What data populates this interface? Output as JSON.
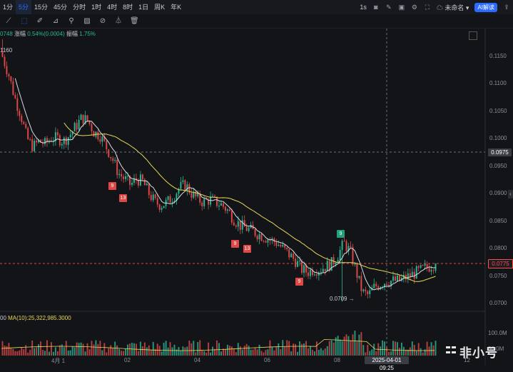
{
  "timeframes": [
    "1分",
    "5分",
    "15分",
    "45分",
    "分时",
    "1时",
    "4时",
    "8时",
    "1日",
    "周K",
    "年K"
  ],
  "active_timeframe": "5分",
  "top_right": {
    "interval": "1s",
    "layout_name": "未命名",
    "ai_label": "AI解读"
  },
  "info": {
    "price_fragment": "0748",
    "change_label": "涨幅",
    "change_value": "0.54%(0.0004)",
    "amp_label": "振幅",
    "amp_value": "1.75%"
  },
  "high_label": "1160",
  "volume_info": {
    "prefix": "00",
    "ma_label": "MA(10):",
    "ma_value": "25,322,985.3000"
  },
  "y_axis": [
    "0.1150",
    "0.1100",
    "0.1050",
    "0.1000",
    "0.0950",
    "0.0900",
    "0.0850",
    "0.0800",
    "0.0750",
    "0.0700"
  ],
  "volume_axis": [
    "100.0M",
    "50.0M"
  ],
  "x_axis": [
    "4月 1",
    "02",
    "04",
    "06",
    "08",
    "12"
  ],
  "current_price": "0.0775",
  "crosshair_price": "0.0975",
  "crosshair_date": "2025-04-01 09:25",
  "annotations": {
    "red_9_a": "9",
    "red_13_a": "13",
    "red_9_b": "9",
    "red_13_b": "13",
    "red_9_c": "9",
    "green_9": "9"
  },
  "low_marker": "0.0709 →",
  "watermark": "非小号",
  "colors": {
    "up": "#2bb795",
    "down": "#e04848",
    "ma_short": "#d8dde4",
    "ma_long": "#e8d75a",
    "accent": "#2d6bff"
  },
  "chart_data": {
    "type": "candlestick",
    "ylim": [
      0.07,
      0.116
    ],
    "high": 0.116,
    "low": 0.0709,
    "last": 0.0775,
    "closes": [
      0.113,
      0.11,
      0.106,
      0.103,
      0.099,
      0.0975,
      0.0985,
      0.098,
      0.099,
      0.099,
      0.0985,
      0.0995,
      0.101,
      0.1025,
      0.102,
      0.1,
      0.0995,
      0.0975,
      0.0955,
      0.093,
      0.092,
      0.091,
      0.092,
      0.0915,
      0.0895,
      0.088,
      0.0875,
      0.088,
      0.089,
      0.0905,
      0.091,
      0.0895,
      0.0885,
      0.088,
      0.0885,
      0.088,
      0.0875,
      0.0865,
      0.085,
      0.084,
      0.0835,
      0.083,
      0.0825,
      0.082,
      0.0815,
      0.081,
      0.08,
      0.079,
      0.078,
      0.0765,
      0.076,
      0.0765,
      0.0765,
      0.077,
      0.0775,
      0.079,
      0.081,
      0.0795,
      0.076,
      0.0725,
      0.072,
      0.0735,
      0.074,
      0.0745,
      0.0745,
      0.0745,
      0.075,
      0.0755,
      0.076,
      0.0765,
      0.077,
      0.0775
    ]
  }
}
